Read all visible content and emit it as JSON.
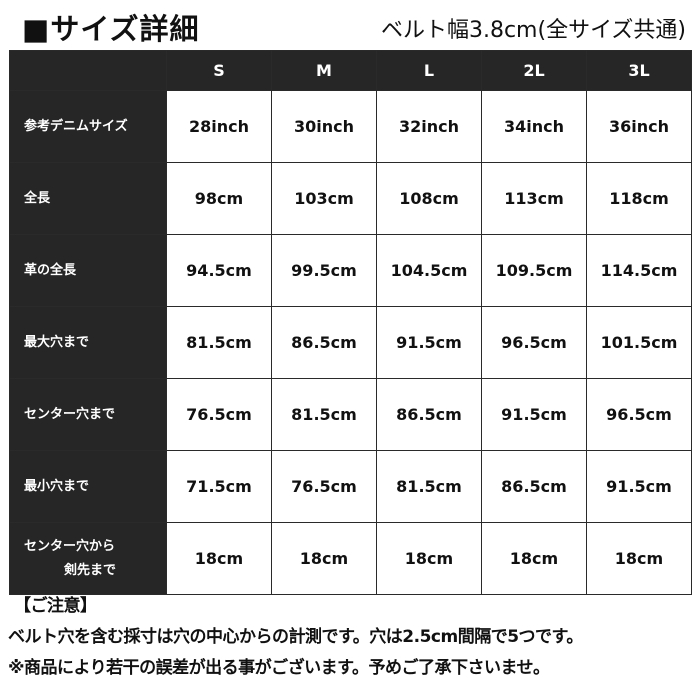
{
  "title": "■サイズ詳細",
  "subtitle": "ベルト幅3.8cm(全サイズ共通)",
  "table": {
    "columns": [
      "",
      "S",
      "M",
      "L",
      "2L",
      "3L"
    ],
    "rows": [
      {
        "label": "参考デニムサイズ",
        "values": [
          "28inch",
          "30inch",
          "32inch",
          "34inch",
          "36inch"
        ]
      },
      {
        "label": "全長",
        "values": [
          "98cm",
          "103cm",
          "108cm",
          "113cm",
          "118cm"
        ]
      },
      {
        "label": "革の全長",
        "values": [
          "94.5cm",
          "99.5cm",
          "104.5cm",
          "109.5cm",
          "114.5cm"
        ]
      },
      {
        "label": "最大穴まで",
        "values": [
          "81.5cm",
          "86.5cm",
          "91.5cm",
          "96.5cm",
          "101.5cm"
        ]
      },
      {
        "label": "センター穴まで",
        "values": [
          "76.5cm",
          "81.5cm",
          "86.5cm",
          "91.5cm",
          "96.5cm"
        ]
      },
      {
        "label": "最小穴まで",
        "values": [
          "71.5cm",
          "76.5cm",
          "81.5cm",
          "86.5cm",
          "91.5cm"
        ]
      },
      {
        "label": "センター穴から",
        "label2": "剣先まで",
        "values": [
          "18cm",
          "18cm",
          "18cm",
          "18cm",
          "18cm"
        ]
      }
    ]
  },
  "notes": {
    "heading": "【ご注意】",
    "line1": "ベルト穴を含む採寸は穴の中心からの計測です。穴は2.5cm間隔で5つです。",
    "line2": "※商品により若干の誤差が出る事がございます。予めご了承下さいませ。"
  }
}
